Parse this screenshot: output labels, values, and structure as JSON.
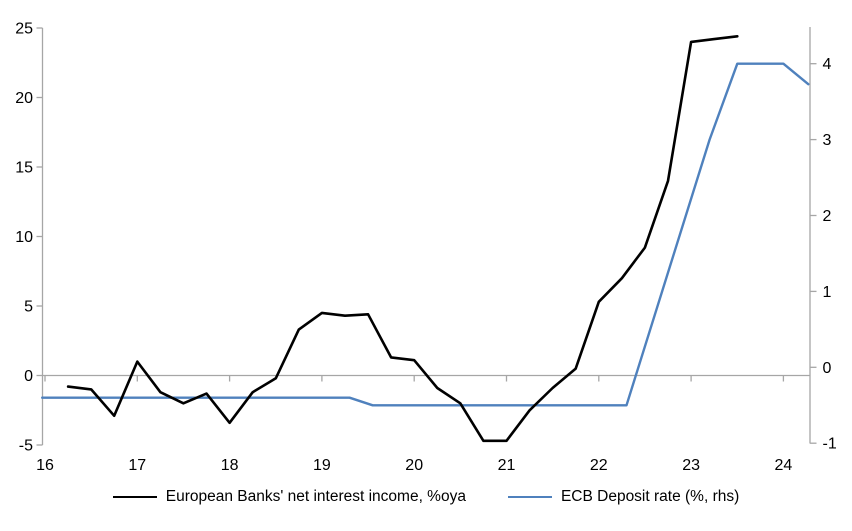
{
  "chart_data": {
    "type": "line",
    "title": "",
    "legend_position": "bottom",
    "grid": "zero-baseline-only",
    "x_axis": {
      "tick_values": [
        16,
        17,
        18,
        19,
        20,
        21,
        22,
        23,
        24
      ],
      "tick_labels": [
        "16",
        "17",
        "18",
        "19",
        "20",
        "21",
        "22",
        "23",
        "24"
      ],
      "range": [
        15.96,
        24.3
      ]
    },
    "left_y_axis": {
      "tick_values": [
        -5,
        0,
        5,
        10,
        15,
        20,
        25
      ],
      "tick_labels": [
        "-5",
        "0",
        "5",
        "10",
        "15",
        "20",
        "25"
      ],
      "range": [
        -5,
        25
      ]
    },
    "right_y_axis": {
      "tick_values": [
        -1,
        0,
        1,
        2,
        3,
        4
      ],
      "tick_labels": [
        "-1",
        "0",
        "1",
        "2",
        "3",
        "4"
      ],
      "range": [
        -1.07,
        4.5
      ]
    },
    "series": [
      {
        "name": "European Banks' net interest income, %oya",
        "axis": "left",
        "color": "#000000",
        "stroke_width": 2.6,
        "x": [
          16.25,
          16.5,
          16.75,
          17.0,
          17.25,
          17.5,
          17.75,
          18.0,
          18.25,
          18.5,
          18.75,
          19.0,
          19.25,
          19.5,
          19.75,
          20.0,
          20.25,
          20.5,
          20.75,
          21.0,
          21.25,
          21.5,
          21.75,
          22.0,
          22.25,
          22.5,
          22.75,
          23.0,
          23.25,
          23.5
        ],
        "values": [
          -0.8,
          -1.0,
          -2.9,
          1.0,
          -1.2,
          -2.0,
          -1.3,
          -3.4,
          -1.2,
          -0.2,
          3.3,
          4.5,
          4.3,
          4.4,
          1.3,
          1.1,
          -0.9,
          -2.0,
          -4.7,
          -4.7,
          -2.5,
          -0.9,
          0.5,
          5.3,
          7.0,
          9.2,
          14.0,
          24.0,
          24.2,
          24.4
        ]
      },
      {
        "name": "ECB Deposit rate (%, rhs)",
        "axis": "right",
        "color": "#4F81BD",
        "stroke_width": 2.4,
        "x": [
          15.97,
          19.3,
          19.55,
          22.3,
          23.2,
          23.5,
          24.0,
          24.27
        ],
        "values": [
          -0.4,
          -0.4,
          -0.5,
          -0.5,
          3.0,
          4.0,
          4.0,
          3.73
        ]
      }
    ]
  },
  "colors": {
    "axis": "#A6A6A6",
    "text": "#000000",
    "background": "#FFFFFF"
  }
}
